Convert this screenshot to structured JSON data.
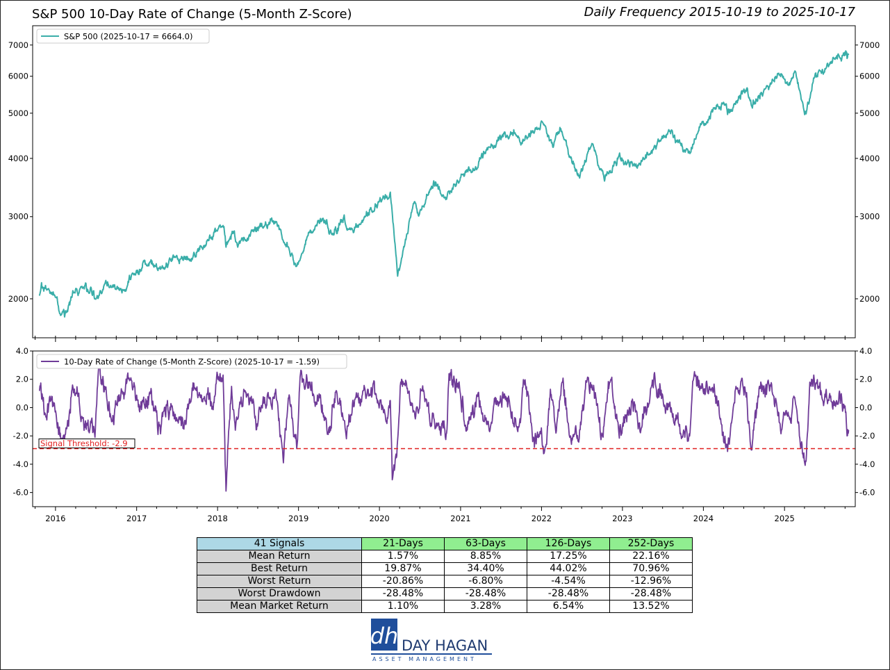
{
  "title": "S&P 500 10-Day Rate of Change (5-Month Z-Score)",
  "subtitle": "Daily Frequency 2015-10-19 to 2025-10-17",
  "colors": {
    "price": "#3aaea9",
    "zscore": "#6f3b98",
    "threshold": "#e02020"
  },
  "chart_data": [
    {
      "type": "line",
      "legend": "S&P 500 (2025-10-17 = 6664.0)",
      "legend_position": "top-left",
      "yscale": "log",
      "ylim": [
        1650,
        7700
      ],
      "yticks": [
        2000,
        3000,
        4000,
        5000,
        6000,
        7000
      ],
      "ytick_labels": [
        "2000",
        "3000",
        "4000",
        "5000",
        "6000",
        "7000"
      ],
      "xlim": [
        "2015-09-20",
        "2025-11-16"
      ],
      "xtick_labels": [
        "2016",
        "2017",
        "2018",
        "2019",
        "2020",
        "2021",
        "2022",
        "2023",
        "2024",
        "2025"
      ],
      "grid": false,
      "series": [
        {
          "name": "S&P 500",
          "x": [
            "2015-10-19",
            "2015-11-03",
            "2015-12-01",
            "2016-01-04",
            "2016-01-20",
            "2016-02-11",
            "2016-03-15",
            "2016-04-20",
            "2016-06-08",
            "2016-06-27",
            "2016-08-15",
            "2016-11-04",
            "2016-12-13",
            "2017-03-01",
            "2017-04-13",
            "2017-06-19",
            "2017-08-21",
            "2017-10-02",
            "2018-01-26",
            "2018-02-08",
            "2018-03-12",
            "2018-04-02",
            "2018-06-13",
            "2018-09-20",
            "2018-10-29",
            "2018-12-24",
            "2019-02-15",
            "2019-04-30",
            "2019-06-03",
            "2019-07-26",
            "2019-08-05",
            "2019-10-01",
            "2019-12-31",
            "2020-02-19",
            "2020-03-23",
            "2020-06-08",
            "2020-06-26",
            "2020-09-02",
            "2020-10-30",
            "2021-01-04",
            "2021-03-04",
            "2021-05-07",
            "2021-09-02",
            "2021-10-04",
            "2022-01-03",
            "2022-02-23",
            "2022-03-29",
            "2022-05-20",
            "2022-06-16",
            "2022-08-16",
            "2022-10-12",
            "2022-12-13",
            "2023-03-13",
            "2023-07-31",
            "2023-10-27",
            "2023-12-29",
            "2024-03-28",
            "2024-04-19",
            "2024-07-16",
            "2024-08-05",
            "2024-12-06",
            "2025-01-13",
            "2025-02-19",
            "2025-03-13",
            "2025-04-08",
            "2025-05-16",
            "2025-07-28",
            "2025-10-08",
            "2025-10-10",
            "2025-10-17"
          ],
          "y": [
            2033,
            2109,
            2103,
            2012,
            1859,
            1829,
            2015,
            2102,
            2119,
            2000,
            2190,
            2085,
            2271,
            2395,
            2329,
            2453,
            2428,
            2529,
            2872,
            2581,
            2786,
            2581,
            2786,
            2930,
            2641,
            2351,
            2775,
            2945,
            2744,
            3025,
            2844,
            2887,
            3231,
            3386,
            2237,
            3232,
            3009,
            3580,
            3270,
            3701,
            3768,
            4232,
            4537,
            4300,
            4796,
            4225,
            4631,
            3901,
            3666,
            4305,
            3577,
            4019,
            3855,
            4589,
            4117,
            4770,
            5254,
            4967,
            5667,
            5186,
            6090,
            5836,
            6144,
            5521,
            4983,
            5958,
            6389,
            6753,
            6552,
            6664
          ]
        }
      ]
    },
    {
      "type": "line",
      "legend": "10-Day Rate of Change (5-Month Z-Score) (2025-10-17 = -1.59)",
      "legend_position": "top-left",
      "ylim": [
        -7.0,
        4.0
      ],
      "yticks": [
        -6,
        -4,
        -2,
        0,
        2,
        4
      ],
      "ytick_labels": [
        "-6.0",
        "-4.0",
        "-2.0",
        "0.0",
        "2.0",
        "4.0"
      ],
      "annotation": "Signal Threshold: -2.9",
      "threshold": -2.9,
      "grid": false,
      "series": [
        {
          "name": "10-Day Rate of Change (5-Month Z-Score)",
          "x": [
            "2015-10-19",
            "2015-11-17",
            "2015-12-15",
            "2016-01-15",
            "2016-02-11",
            "2016-03-18",
            "2016-05-05",
            "2016-06-27",
            "2016-07-15",
            "2016-09-12",
            "2016-10-20",
            "2016-11-30",
            "2017-01-15",
            "2017-03-01",
            "2017-04-13",
            "2017-05-20",
            "2017-06-20",
            "2017-08-10",
            "2017-09-20",
            "2017-11-15",
            "2017-12-20",
            "2018-01-26",
            "2018-02-08",
            "2018-03-05",
            "2018-03-22",
            "2018-05-05",
            "2018-06-20",
            "2018-08-15",
            "2018-09-20",
            "2018-10-25",
            "2018-11-20",
            "2018-12-24",
            "2019-01-10",
            "2019-02-20",
            "2019-04-10",
            "2019-05-13",
            "2019-06-20",
            "2019-08-05",
            "2019-09-15",
            "2019-10-20",
            "2019-12-15",
            "2020-01-31",
            "2020-02-19",
            "2020-02-28",
            "2020-03-12",
            "2020-03-23",
            "2020-04-10",
            "2020-05-10",
            "2020-06-11",
            "2020-07-10",
            "2020-09-08",
            "2020-10-30",
            "2020-11-10",
            "2021-01-10",
            "2021-01-29",
            "2021-03-15",
            "2021-05-12",
            "2021-07-10",
            "2021-09-20",
            "2021-10-15",
            "2021-11-30",
            "2022-01-24",
            "2022-02-10",
            "2022-03-07",
            "2022-04-04",
            "2022-05-12",
            "2022-06-16",
            "2022-07-20",
            "2022-08-16",
            "2022-09-30",
            "2022-11-10",
            "2022-12-22",
            "2023-02-15",
            "2023-03-13",
            "2023-05-20",
            "2023-07-20",
            "2023-09-20",
            "2023-10-27",
            "2023-11-20",
            "2024-01-10",
            "2024-03-01",
            "2024-04-19",
            "2024-05-25",
            "2024-07-10",
            "2024-08-05",
            "2024-09-10",
            "2024-11-10",
            "2024-12-18",
            "2025-02-10",
            "2025-03-13",
            "2025-04-08",
            "2025-04-25",
            "2025-05-13",
            "2025-06-20",
            "2025-08-01",
            "2025-09-10",
            "2025-10-01",
            "2025-10-10",
            "2025-10-17"
          ],
          "y": [
            1.2,
            -0.5,
            0.8,
            -1.9,
            -2.2,
            1.6,
            -0.7,
            -2.1,
            2.8,
            -0.9,
            0.6,
            1.9,
            -0.3,
            1.1,
            -1.3,
            0.5,
            -0.8,
            -1.2,
            1.4,
            1.0,
            0.8,
            2.3,
            -5.9,
            1.5,
            -1.6,
            1.2,
            -0.6,
            1.0,
            1.3,
            -3.9,
            0.9,
            -2.9,
            2.4,
            1.8,
            0.9,
            -1.8,
            1.2,
            -2.2,
            0.7,
            1.2,
            1.0,
            -1.0,
            0.5,
            -5.1,
            -3.7,
            -2.3,
            2.0,
            1.1,
            -0.8,
            1.2,
            -1.5,
            -1.8,
            2.4,
            0.8,
            -1.4,
            0.9,
            -1.7,
            1.1,
            -1.4,
            1.8,
            -2.8,
            -2.6,
            1.3,
            -1.8,
            1.8,
            -2.0,
            -2.4,
            1.9,
            1.6,
            -1.8,
            2.0,
            -1.2,
            0.6,
            -1.5,
            1.4,
            0.3,
            -1.8,
            -2.1,
            2.3,
            1.0,
            0.8,
            -3.1,
            1.3,
            1.0,
            -3.0,
            1.5,
            0.9,
            -1.6,
            0.7,
            -2.6,
            -3.8,
            1.8,
            2.3,
            0.6,
            0.4,
            0.3,
            0.1,
            -2.0,
            -1.59
          ]
        }
      ]
    }
  ],
  "table": {
    "corner": "41 Signals",
    "columns": [
      "21-Days",
      "63-Days",
      "126-Days",
      "252-Days"
    ],
    "rows": [
      {
        "label": "Mean Return",
        "values": [
          "1.57%",
          "8.85%",
          "17.25%",
          "22.16%"
        ]
      },
      {
        "label": "Best Return",
        "values": [
          "19.87%",
          "34.40%",
          "44.02%",
          "70.96%"
        ]
      },
      {
        "label": "Worst Return",
        "values": [
          "-20.86%",
          "-6.80%",
          "-4.54%",
          "-12.96%"
        ]
      },
      {
        "label": "Worst Drawdown",
        "values": [
          "-28.48%",
          "-28.48%",
          "-28.48%",
          "-28.48%"
        ]
      },
      {
        "label": "Mean Market Return",
        "values": [
          "1.10%",
          "3.28%",
          "6.54%",
          "13.52%"
        ]
      }
    ]
  },
  "logo": {
    "name": "DAY HAGAN",
    "tagline": "ASSET MANAGEMENT",
    "monogram": "dh"
  }
}
